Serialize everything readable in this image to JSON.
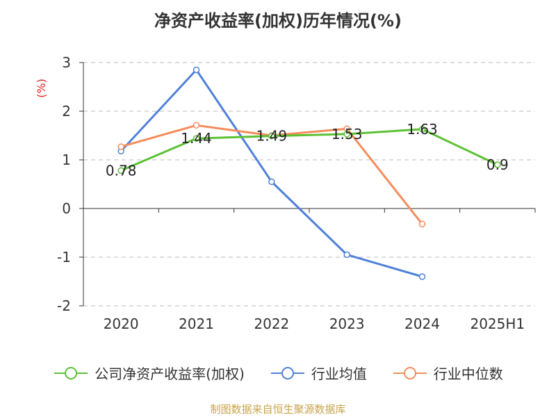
{
  "source": "制图数据来自恒生聚源数据库",
  "chart_data": {
    "type": "line",
    "title": "净资产收益率(加权)历年情况(%)",
    "ylabel": "(%)",
    "categories": [
      "2020",
      "2021",
      "2022",
      "2023",
      "2024",
      "2025H1"
    ],
    "ylim": [
      -2,
      3
    ],
    "yticks": [
      "3",
      "2",
      "1",
      "0",
      "-1",
      "-2"
    ],
    "grid": true,
    "legend_position": "bottom",
    "series": [
      {
        "name": "公司净资产收益率(加权)",
        "color": "#5bc133",
        "values": [
          0.78,
          1.44,
          1.49,
          1.53,
          1.63,
          0.9
        ],
        "labels": [
          "0.78",
          "1.44",
          "1.49",
          "1.53",
          "1.63",
          "0.9"
        ]
      },
      {
        "name": "行业均值",
        "color": "#4f81d9",
        "values": [
          1.18,
          2.85,
          0.55,
          -0.95,
          -1.4,
          null
        ]
      },
      {
        "name": "行业中位数",
        "color": "#f48c5a",
        "values": [
          1.27,
          1.71,
          1.5,
          1.64,
          -0.32,
          null
        ]
      }
    ]
  }
}
